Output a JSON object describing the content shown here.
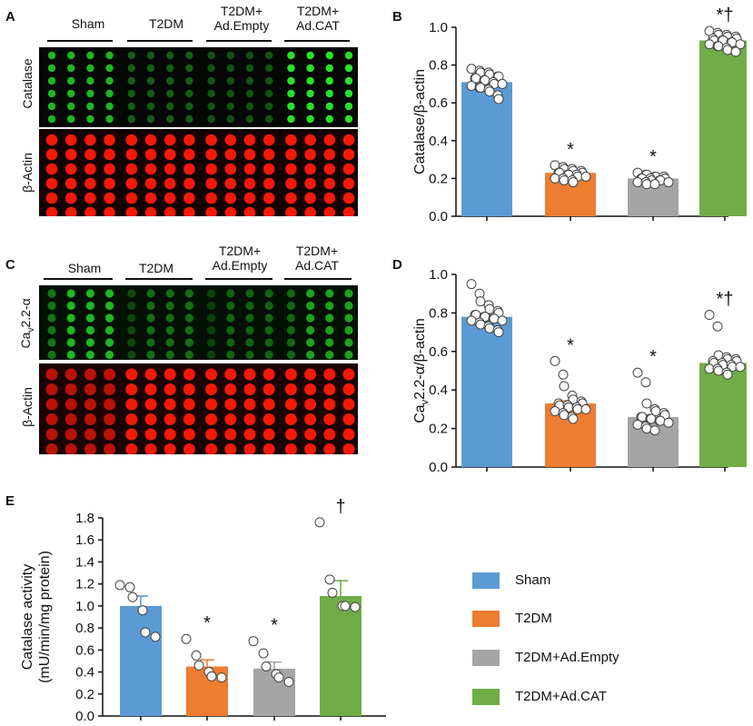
{
  "panel_letters": {
    "a": "A",
    "b": "B",
    "c": "C",
    "d": "D",
    "e": "E"
  },
  "blot_groups": [
    "Sham",
    "T2DM",
    "T2DM+\nAd.Empty",
    "T2DM+\nAd.CAT"
  ],
  "blot_groups_c": [
    "Sham",
    "T2DM",
    "T2DM+\nAd.Empty",
    "T2DM+\nAd.CAT"
  ],
  "blot_a_rows": {
    "top": "Catalase",
    "bottom": "β-Actin"
  },
  "blot_c_rows": {
    "top": "Cav2.2-α",
    "bottom": "β-Actin"
  },
  "colors": {
    "sham": "#5b9bd5",
    "t2dm": "#ed7d31",
    "empty": "#a5a5a5",
    "cat": "#70ad47",
    "green": "#27e22a",
    "red": "#ff1a0a"
  },
  "legend": [
    {
      "label": "Sham",
      "color": "#5b9bd5"
    },
    {
      "label": "T2DM",
      "color": "#ed7d31"
    },
    {
      "label": "T2DM+Ad.Empty",
      "color": "#a5a5a5"
    },
    {
      "label": "T2DM+Ad.CAT",
      "color": "#70ad47"
    }
  ],
  "chart_data": [
    {
      "id": "B",
      "type": "bar",
      "ylabel": "Catalase/β-actin",
      "ylim": [
        0,
        1.0
      ],
      "yticks": [
        "0.0",
        "0.2",
        "0.4",
        "0.6",
        "0.8",
        "1.0"
      ],
      "categories": [
        "Sham",
        "T2DM",
        "T2DM+Ad.Empty",
        "T2DM+Ad.CAT"
      ],
      "values": [
        0.71,
        0.23,
        0.2,
        0.93
      ],
      "errors": [
        0.01,
        0.008,
        0.006,
        0.01
      ],
      "annotations": [
        "",
        "*",
        "*",
        "*†"
      ],
      "points": [
        [
          0.78,
          0.77,
          0.76,
          0.76,
          0.75,
          0.74,
          0.74,
          0.73,
          0.73,
          0.72,
          0.72,
          0.71,
          0.7,
          0.7,
          0.69,
          0.68,
          0.68,
          0.67,
          0.66,
          0.64,
          0.62
        ],
        [
          0.27,
          0.26,
          0.25,
          0.25,
          0.24,
          0.24,
          0.23,
          0.23,
          0.23,
          0.22,
          0.22,
          0.22,
          0.21,
          0.21,
          0.2,
          0.2,
          0.19,
          0.19,
          0.18
        ],
        [
          0.23,
          0.22,
          0.22,
          0.21,
          0.21,
          0.21,
          0.2,
          0.2,
          0.2,
          0.2,
          0.19,
          0.19,
          0.19,
          0.18,
          0.18,
          0.18,
          0.17,
          0.17
        ],
        [
          0.98,
          0.97,
          0.96,
          0.96,
          0.95,
          0.95,
          0.94,
          0.94,
          0.93,
          0.93,
          0.93,
          0.92,
          0.92,
          0.91,
          0.91,
          0.9,
          0.9,
          0.89,
          0.88,
          0.87
        ]
      ]
    },
    {
      "id": "D",
      "type": "bar",
      "ylabel": "Cav2.2-α/β-actin",
      "ylim": [
        0,
        1.0
      ],
      "yticks": [
        "0.0",
        "0.2",
        "0.4",
        "0.6",
        "0.8",
        "1.0"
      ],
      "categories": [
        "Sham",
        "T2DM",
        "T2DM+Ad.Empty",
        "T2DM+Ad.CAT"
      ],
      "values": [
        0.78,
        0.33,
        0.26,
        0.54
      ],
      "errors": [
        0.012,
        0.015,
        0.012,
        0.012
      ],
      "annotations": [
        "",
        "*",
        "*",
        "*†"
      ],
      "points": [
        [
          0.95,
          0.9,
          0.86,
          0.84,
          0.82,
          0.81,
          0.8,
          0.79,
          0.79,
          0.78,
          0.78,
          0.77,
          0.77,
          0.76,
          0.76,
          0.75,
          0.74,
          0.73,
          0.72,
          0.71,
          0.7
        ],
        [
          0.55,
          0.48,
          0.42,
          0.37,
          0.35,
          0.34,
          0.33,
          0.33,
          0.32,
          0.32,
          0.31,
          0.31,
          0.3,
          0.3,
          0.29,
          0.28,
          0.27,
          0.26,
          0.25
        ],
        [
          0.49,
          0.44,
          0.33,
          0.3,
          0.29,
          0.28,
          0.27,
          0.26,
          0.26,
          0.25,
          0.25,
          0.24,
          0.24,
          0.23,
          0.22,
          0.21,
          0.2,
          0.19
        ],
        [
          0.79,
          0.73,
          0.58,
          0.57,
          0.56,
          0.56,
          0.55,
          0.55,
          0.54,
          0.54,
          0.53,
          0.53,
          0.52,
          0.52,
          0.51,
          0.51,
          0.5,
          0.49,
          0.48
        ]
      ]
    },
    {
      "id": "E",
      "type": "bar",
      "ylabel": "Catalase activity",
      "ylabel2": "(mU/min/mg protein)",
      "ylim": [
        0,
        1.8
      ],
      "yticks": [
        "0.0",
        "0.2",
        "0.4",
        "0.6",
        "0.8",
        "1.0",
        "1.2",
        "1.4",
        "1.6",
        "1.8"
      ],
      "categories": [
        "Sham",
        "T2DM",
        "T2DM+Ad.Empty",
        "T2DM+Ad.CAT"
      ],
      "values": [
        1.0,
        0.45,
        0.43,
        1.09
      ],
      "errors": [
        0.09,
        0.06,
        0.06,
        0.14
      ],
      "annotations": [
        "",
        "*",
        "*",
        "†"
      ],
      "points": [
        [
          1.19,
          1.17,
          1.08,
          0.96,
          0.76,
          0.72
        ],
        [
          0.7,
          0.55,
          0.46,
          0.4,
          0.36,
          0.35
        ],
        [
          0.68,
          0.57,
          0.45,
          0.38,
          0.35,
          0.31
        ],
        [
          1.76,
          1.24,
          1.12,
          1.0,
          1.0,
          0.99
        ]
      ]
    }
  ]
}
